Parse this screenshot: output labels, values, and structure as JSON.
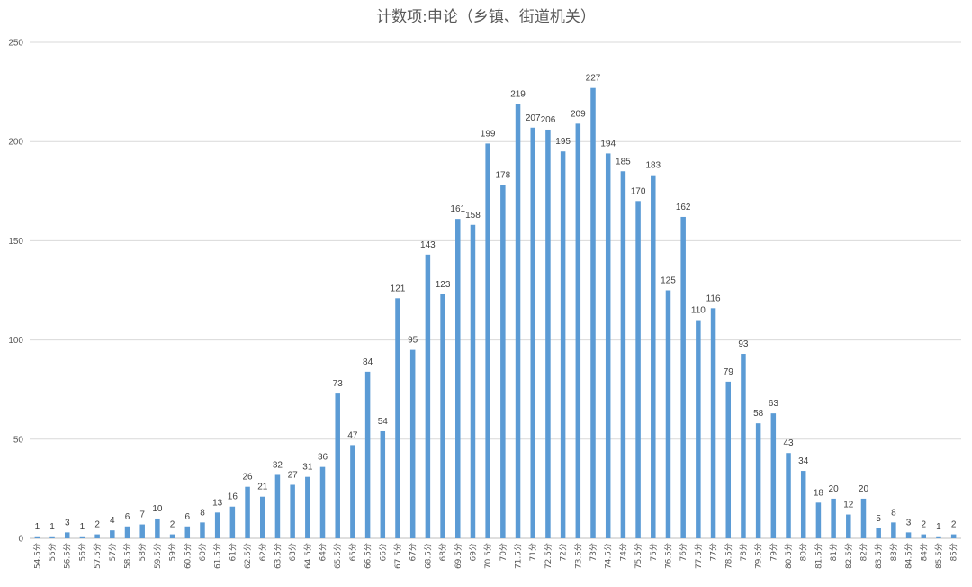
{
  "chart_data": {
    "type": "bar",
    "title": "计数项:申论（乡镇、街道机关）",
    "xlabel": "",
    "ylabel": "",
    "ylim": [
      0,
      250
    ],
    "yticks": [
      0,
      50,
      100,
      150,
      200,
      250
    ],
    "grid": true,
    "legend": "none",
    "data_labels": true,
    "bar_color": "#5b9bd5",
    "categories": [
      "54.5分",
      "55分",
      "56.5分",
      "56分",
      "57.5分",
      "57分",
      "58.5分",
      "58分",
      "59.5分",
      "59分",
      "60.5分",
      "60分",
      "61.5分",
      "61分",
      "62.5分",
      "62分",
      "63.5分",
      "63分",
      "64.5分",
      "64分",
      "65.5分",
      "65分",
      "66.5分",
      "66分",
      "67.5分",
      "67分",
      "68.5分",
      "68分",
      "69.5分",
      "69分",
      "70.5分",
      "70分",
      "71.5分",
      "71分",
      "72.5分",
      "72分",
      "73.5分",
      "73分",
      "74.5分",
      "74分",
      "75.5分",
      "75分",
      "76.5分",
      "76分",
      "77.5分",
      "77分",
      "78.5分",
      "78分",
      "79.5分",
      "79分",
      "80.5分",
      "80分",
      "81.5分",
      "81分",
      "82.5分",
      "82分",
      "83.5分",
      "83分",
      "84.5分",
      "84分",
      "85.5分",
      "85分"
    ],
    "values": [
      1,
      1,
      3,
      1,
      2,
      4,
      6,
      7,
      10,
      2,
      6,
      8,
      13,
      16,
      26,
      21,
      32,
      27,
      31,
      36,
      73,
      47,
      84,
      54,
      121,
      95,
      143,
      123,
      161,
      158,
      199,
      178,
      219,
      207,
      206,
      195,
      209,
      227,
      194,
      185,
      170,
      183,
      125,
      162,
      110,
      116,
      79,
      93,
      58,
      63,
      43,
      34,
      18,
      20,
      12,
      20,
      5,
      8,
      3,
      2,
      1,
      2
    ]
  }
}
